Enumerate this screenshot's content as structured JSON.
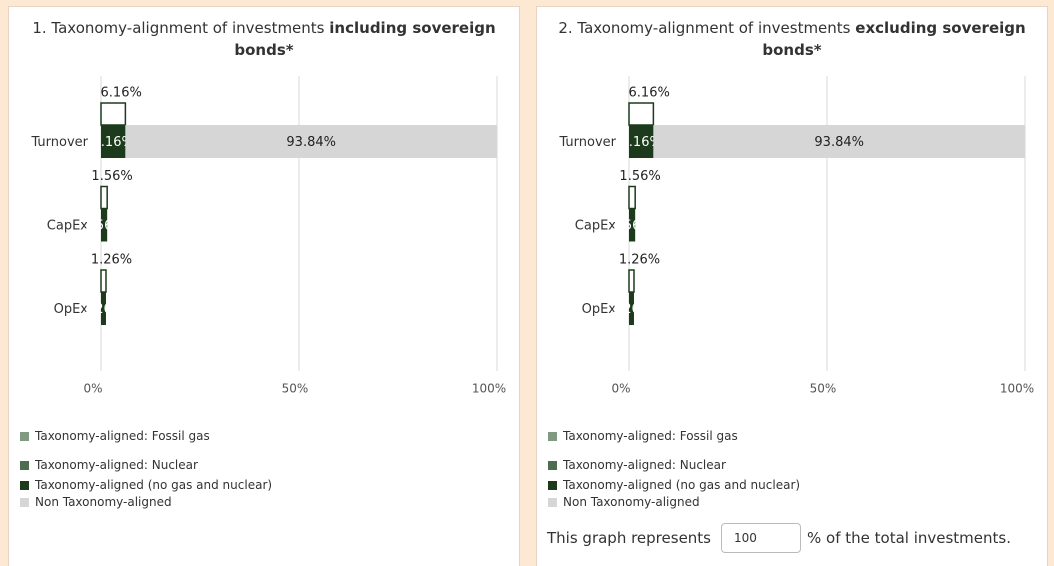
{
  "chart_data": [
    {
      "type": "bar",
      "orientation": "horizontal",
      "stacked": true,
      "title": "1. Taxonomy-alignment of investments",
      "title_emphasis": "including sovereign bonds*",
      "categories": [
        "Turnover",
        "CapEx",
        "OpEx"
      ],
      "totals": {
        "values": [
          6.16,
          1.56,
          1.26
        ],
        "value_labels": [
          "6.16%",
          "1.56%",
          "1.26%"
        ]
      },
      "series": [
        {
          "name": "Taxonomy-aligned: Fossil gas",
          "color": "#7f9a80",
          "values": [
            0,
            0,
            0
          ]
        },
        {
          "name": "Taxonomy-aligned: Nuclear",
          "color": "#4d6e4e",
          "values": [
            0,
            0,
            0
          ]
        },
        {
          "name": "Taxonomy-aligned (no gas and nuclear)",
          "color": "#1c3a1c",
          "values": [
            6.16,
            1.56,
            1.26
          ],
          "value_labels": [
            "6.16%",
            "1.56%",
            "1.26%"
          ]
        },
        {
          "name": "Non Taxonomy-aligned",
          "color": "#d6d6d6",
          "values": [
            93.84,
            null,
            null
          ],
          "value_labels": [
            "93.84%",
            null,
            null
          ]
        }
      ],
      "xlim": [
        0,
        100
      ],
      "xticks": [
        {
          "value": 0,
          "label": "0%"
        },
        {
          "value": 50,
          "label": "50%"
        },
        {
          "value": 100,
          "label": "100%"
        }
      ],
      "grid": true
    },
    {
      "type": "bar",
      "orientation": "horizontal",
      "stacked": true,
      "title": "2. Taxonomy-alignment of investments",
      "title_emphasis": "excluding sovereign bonds*",
      "categories": [
        "Turnover",
        "CapEx",
        "OpEx"
      ],
      "totals": {
        "values": [
          6.16,
          1.56,
          1.26
        ],
        "value_labels": [
          "6.16%",
          "1.56%",
          "1.26%"
        ]
      },
      "series": [
        {
          "name": "Taxonomy-aligned: Fossil gas",
          "color": "#7f9a80",
          "values": [
            0,
            0,
            0
          ]
        },
        {
          "name": "Taxonomy-aligned: Nuclear",
          "color": "#4d6e4e",
          "values": [
            0,
            0,
            0
          ]
        },
        {
          "name": "Taxonomy-aligned (no gas and nuclear)",
          "color": "#1c3a1c",
          "values": [
            6.16,
            1.56,
            1.26
          ],
          "value_labels": [
            "6.16%",
            "1.56%",
            "1.26%"
          ]
        },
        {
          "name": "Non Taxonomy-aligned",
          "color": "#d6d6d6",
          "values": [
            93.84,
            null,
            null
          ],
          "value_labels": [
            "93.84%",
            null,
            null
          ]
        }
      ],
      "xlim": [
        0,
        100
      ],
      "xticks": [
        {
          "value": 0,
          "label": "0%"
        },
        {
          "value": 50,
          "label": "50%"
        },
        {
          "value": 100,
          "label": "100%"
        }
      ],
      "grid": true
    }
  ],
  "note": {
    "before": "This graph represents",
    "input": "100",
    "after": "% of the total investments."
  }
}
